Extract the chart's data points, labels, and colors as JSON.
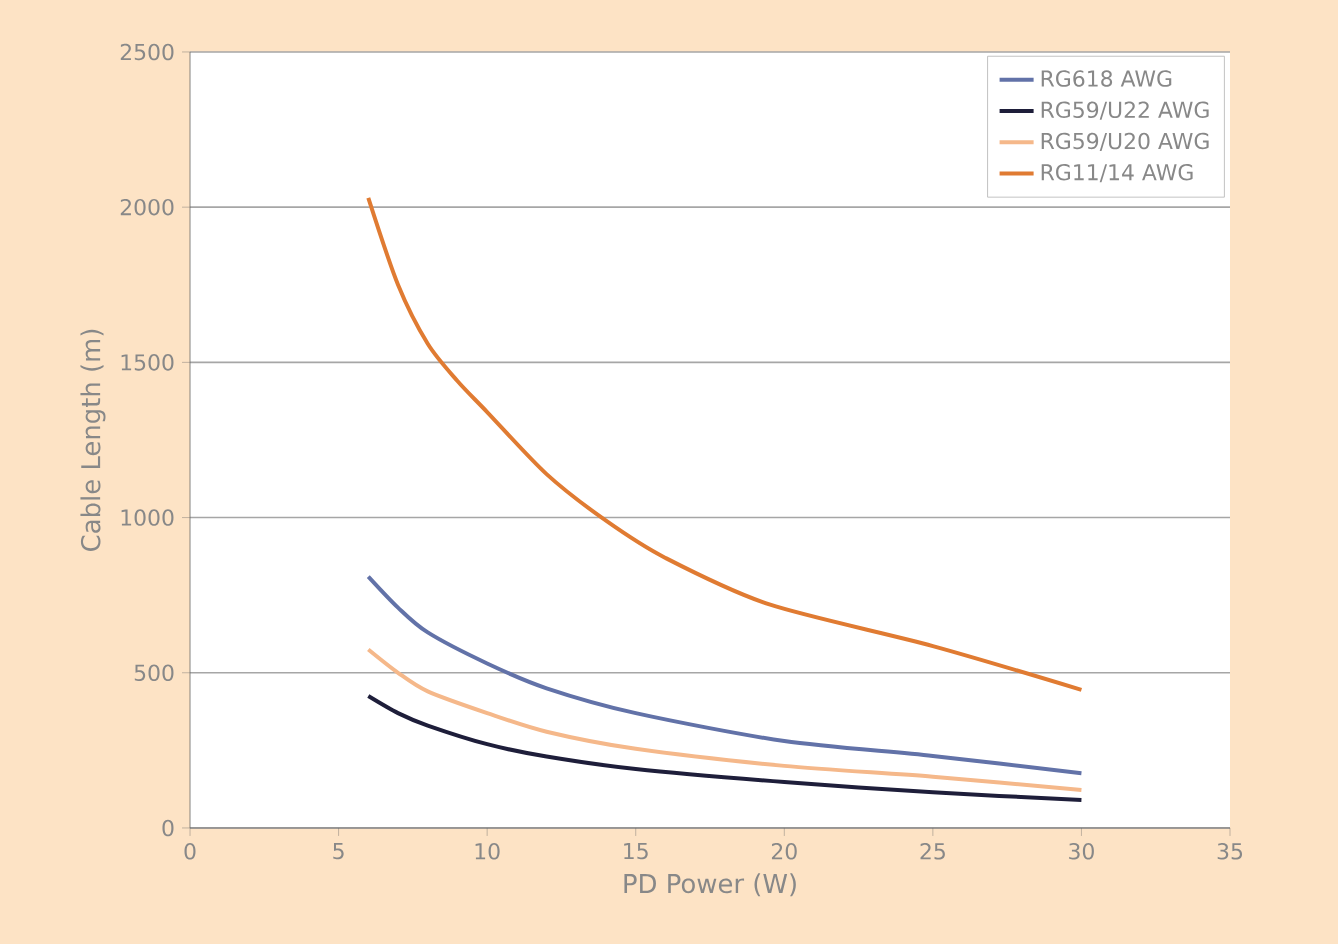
{
  "chart_data": {
    "type": "line",
    "xlabel": "PD Power (W)",
    "ylabel": "Cable Length (m)",
    "xlim": [
      0,
      35
    ],
    "ylim": [
      0,
      2500
    ],
    "xticks": [
      0,
      5,
      10,
      15,
      20,
      25,
      30,
      35
    ],
    "yticks": [
      0,
      500,
      1000,
      1500,
      2000,
      2500
    ],
    "grid": "y",
    "legend": "top right",
    "marker": "none",
    "line_style": "solid",
    "series": [
      {
        "name": "RG618 AWG",
        "color": "#6272a8",
        "x": [
          6,
          7,
          8,
          10,
          12,
          15,
          20,
          25,
          30
        ],
        "values": [
          810,
          710,
          630,
          530,
          450,
          370,
          280,
          232,
          176
        ]
      },
      {
        "name": "RG59/U22 AWG",
        "color": "#1e1e3a",
        "x": [
          6,
          7,
          8,
          10,
          12,
          15,
          20,
          25,
          30
        ],
        "values": [
          425,
          370,
          330,
          270,
          230,
          190,
          148,
          115,
          90
        ]
      },
      {
        "name": "RG59/U20 AWG",
        "color": "#f5b88a",
        "x": [
          6,
          7,
          8,
          10,
          12,
          15,
          20,
          25,
          30
        ],
        "values": [
          575,
          500,
          440,
          370,
          310,
          255,
          200,
          165,
          122
        ]
      },
      {
        "name": "RG11/14 AWG",
        "color": "#e07b32",
        "x": [
          6,
          7,
          8,
          9,
          10,
          12,
          14,
          16,
          19.5,
          25,
          30
        ],
        "values": [
          2030,
          1750,
          1560,
          1440,
          1340,
          1140,
          990,
          870,
          720,
          586,
          445
        ]
      }
    ]
  }
}
